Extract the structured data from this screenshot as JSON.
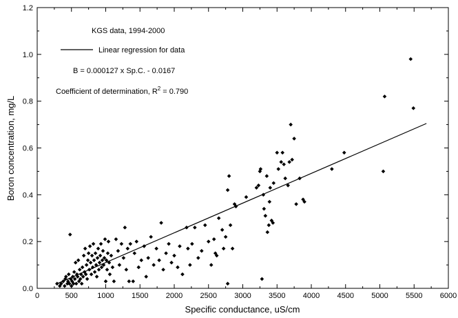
{
  "chart_data": {
    "type": "scatter",
    "title": "",
    "xlabel": "Specific conductance, uS/cm",
    "ylabel": "Boron concentration, mg/L",
    "xlim": [
      0,
      6000
    ],
    "ylim": [
      0,
      1.2
    ],
    "x_ticks": [
      0,
      500,
      1000,
      1500,
      2000,
      2500,
      3000,
      3500,
      4000,
      4500,
      5000,
      5500,
      6000
    ],
    "y_ticks": [
      0.0,
      0.2,
      0.4,
      0.6,
      0.8,
      1.0,
      1.2
    ],
    "x_tick_labels": [
      "0",
      "500",
      "1000",
      "1500",
      "2000",
      "2500",
      "3000",
      "3500",
      "4000",
      "4500",
      "5000",
      "5500",
      "6000"
    ],
    "y_tick_labels": [
      "0.0",
      "0.2",
      "0.4",
      "0.6",
      "0.8",
      "1.0",
      "1.2"
    ],
    "grid": false,
    "annotations": {
      "source": "KGS data, 1994-2000",
      "legend_line": "Linear regression for data",
      "equation": "B = 0.000127 x Sp.C. - 0.0167",
      "r2_prefix": "Coefficient of determination, R",
      "r2_sup": "2",
      "r2_suffix": " = 0.790"
    },
    "regression": {
      "slope": 0.000127,
      "intercept": -0.0167,
      "x_range": [
        290,
        5680
      ]
    },
    "points": [
      [
        290,
        0.02
      ],
      [
        330,
        0.01
      ],
      [
        350,
        0.02
      ],
      [
        380,
        0.03
      ],
      [
        400,
        0.01
      ],
      [
        410,
        0.04
      ],
      [
        420,
        0.05
      ],
      [
        440,
        0.02
      ],
      [
        450,
        0.03
      ],
      [
        460,
        0.06
      ],
      [
        470,
        0.02
      ],
      [
        480,
        0.23
      ],
      [
        490,
        0.04
      ],
      [
        500,
        0.01
      ],
      [
        510,
        0.03
      ],
      [
        520,
        0.05
      ],
      [
        530,
        0.02
      ],
      [
        540,
        0.07
      ],
      [
        550,
        0.04
      ],
      [
        560,
        0.11
      ],
      [
        570,
        0.02
      ],
      [
        580,
        0.06
      ],
      [
        590,
        0.05
      ],
      [
        600,
        0.12
      ],
      [
        610,
        0.03
      ],
      [
        620,
        0.08
      ],
      [
        630,
        0.04
      ],
      [
        640,
        0.06
      ],
      [
        650,
        0.02
      ],
      [
        660,
        0.09
      ],
      [
        670,
        0.05
      ],
      [
        680,
        0.14
      ],
      [
        690,
        0.07
      ],
      [
        700,
        0.17
      ],
      [
        710,
        0.06
      ],
      [
        720,
        0.1
      ],
      [
        730,
        0.04
      ],
      [
        740,
        0.12
      ],
      [
        750,
        0.15
      ],
      [
        760,
        0.08
      ],
      [
        770,
        0.18
      ],
      [
        780,
        0.11
      ],
      [
        790,
        0.06
      ],
      [
        800,
        0.14
      ],
      [
        810,
        0.09
      ],
      [
        820,
        0.19
      ],
      [
        830,
        0.12
      ],
      [
        840,
        0.07
      ],
      [
        850,
        0.15
      ],
      [
        860,
        0.1
      ],
      [
        870,
        0.05
      ],
      [
        880,
        0.13
      ],
      [
        890,
        0.17
      ],
      [
        900,
        0.08
      ],
      [
        910,
        0.11
      ],
      [
        920,
        0.14
      ],
      [
        930,
        0.19
      ],
      [
        940,
        0.09
      ],
      [
        950,
        0.12
      ],
      [
        960,
        0.16
      ],
      [
        970,
        0.1
      ],
      [
        980,
        0.13
      ],
      [
        990,
        0.21
      ],
      [
        1000,
        0.03
      ],
      [
        1010,
        0.12
      ],
      [
        1020,
        0.08
      ],
      [
        1030,
        0.15
      ],
      [
        1040,
        0.2
      ],
      [
        1050,
        0.11
      ],
      [
        1060,
        0.06
      ],
      [
        1080,
        0.14
      ],
      [
        1100,
        0.09
      ],
      [
        1120,
        0.03
      ],
      [
        1150,
        0.21
      ],
      [
        1180,
        0.16
      ],
      [
        1200,
        0.1
      ],
      [
        1230,
        0.19
      ],
      [
        1260,
        0.13
      ],
      [
        1280,
        0.26
      ],
      [
        1300,
        0.08
      ],
      [
        1320,
        0.17
      ],
      [
        1340,
        0.03
      ],
      [
        1360,
        0.19
      ],
      [
        1400,
        0.03
      ],
      [
        1420,
        0.15
      ],
      [
        1450,
        0.2
      ],
      [
        1480,
        0.09
      ],
      [
        1520,
        0.12
      ],
      [
        1560,
        0.18
      ],
      [
        1590,
        0.05
      ],
      [
        1620,
        0.13
      ],
      [
        1660,
        0.22
      ],
      [
        1700,
        0.1
      ],
      [
        1740,
        0.17
      ],
      [
        1780,
        0.12
      ],
      [
        1810,
        0.28
      ],
      [
        1840,
        0.08
      ],
      [
        1880,
        0.15
      ],
      [
        1920,
        0.19
      ],
      [
        1960,
        0.11
      ],
      [
        2000,
        0.14
      ],
      [
        2050,
        0.09
      ],
      [
        2080,
        0.18
      ],
      [
        2120,
        0.06
      ],
      [
        2180,
        0.26
      ],
      [
        2200,
        0.17
      ],
      [
        2230,
        0.1
      ],
      [
        2260,
        0.19
      ],
      [
        2300,
        0.26
      ],
      [
        2350,
        0.13
      ],
      [
        2400,
        0.16
      ],
      [
        2450,
        0.27
      ],
      [
        2500,
        0.2
      ],
      [
        2540,
        0.1
      ],
      [
        2580,
        0.21
      ],
      [
        2600,
        0.15
      ],
      [
        2620,
        0.14
      ],
      [
        2650,
        0.3
      ],
      [
        2700,
        0.25
      ],
      [
        2720,
        0.17
      ],
      [
        2750,
        0.22
      ],
      [
        2780,
        0.02
      ],
      [
        2780,
        0.42
      ],
      [
        2800,
        0.48
      ],
      [
        2820,
        0.27
      ],
      [
        2850,
        0.17
      ],
      [
        2880,
        0.36
      ],
      [
        2900,
        0.35
      ],
      [
        3050,
        0.39
      ],
      [
        3200,
        0.43
      ],
      [
        3230,
        0.44
      ],
      [
        3250,
        0.5
      ],
      [
        3260,
        0.51
      ],
      [
        3280,
        0.04
      ],
      [
        3300,
        0.4
      ],
      [
        3310,
        0.34
      ],
      [
        3330,
        0.31
      ],
      [
        3350,
        0.48
      ],
      [
        3360,
        0.24
      ],
      [
        3380,
        0.27
      ],
      [
        3390,
        0.37
      ],
      [
        3400,
        0.43
      ],
      [
        3420,
        0.29
      ],
      [
        3440,
        0.28
      ],
      [
        3450,
        0.45
      ],
      [
        3500,
        0.58
      ],
      [
        3520,
        0.51
      ],
      [
        3560,
        0.54
      ],
      [
        3580,
        0.58
      ],
      [
        3600,
        0.53
      ],
      [
        3620,
        0.47
      ],
      [
        3660,
        0.44
      ],
      [
        3680,
        0.54
      ],
      [
        3700,
        0.7
      ],
      [
        3720,
        0.55
      ],
      [
        3750,
        0.64
      ],
      [
        3780,
        0.36
      ],
      [
        3830,
        0.47
      ],
      [
        3880,
        0.38
      ],
      [
        3900,
        0.37
      ],
      [
        4300,
        0.51
      ],
      [
        4480,
        0.58
      ],
      [
        5050,
        0.5
      ],
      [
        5070,
        0.82
      ],
      [
        5450,
        0.98
      ],
      [
        5490,
        0.77
      ]
    ]
  }
}
